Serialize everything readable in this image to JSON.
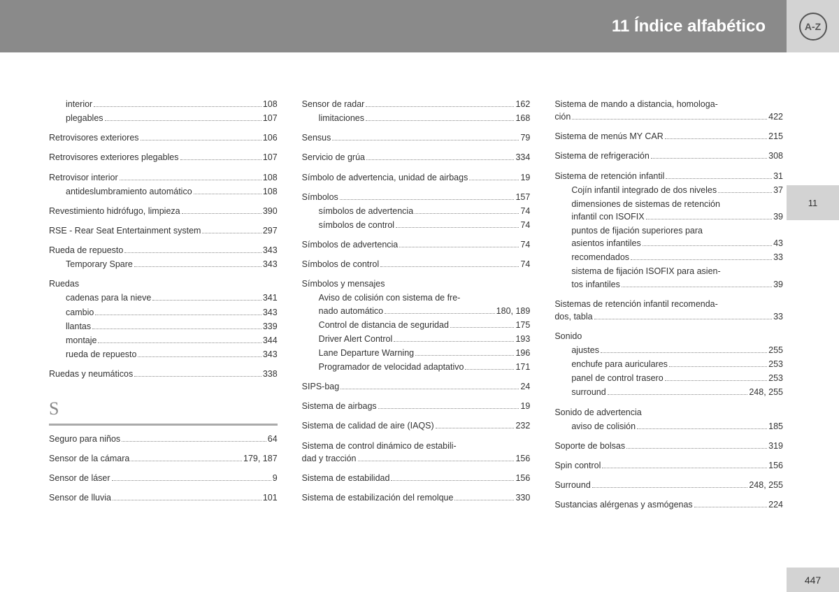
{
  "header": {
    "title": "11 Índice alfabético",
    "badge": "A-Z"
  },
  "sideTab": "11",
  "pageNumber": "447",
  "sectionLetter": "S",
  "col1a": [
    {
      "t": "interior",
      "p": "108",
      "sub": true
    },
    {
      "t": "plegables",
      "p": "107",
      "sub": true
    },
    {
      "sp": true
    },
    {
      "t": "Retrovisores exteriores",
      "p": "106"
    },
    {
      "sp": true
    },
    {
      "t": "Retrovisores exteriores plegables",
      "p": "107"
    },
    {
      "sp": true
    },
    {
      "t": "Retrovisor interior",
      "p": "108"
    },
    {
      "t": "antideslumbramiento automático",
      "p": "108",
      "sub": true
    },
    {
      "sp": true
    },
    {
      "t": "Revestimiento hidrófugo, limpieza",
      "p": "390"
    },
    {
      "sp": true
    },
    {
      "t": "RSE - Rear Seat Entertainment system",
      "p": "297"
    },
    {
      "sp": true
    },
    {
      "t": "Rueda de repuesto",
      "p": "343"
    },
    {
      "t": "Temporary Spare",
      "p": "343",
      "sub": true
    },
    {
      "sp": true
    },
    {
      "t": "Ruedas",
      "nopg": true
    },
    {
      "t": "cadenas para la nieve",
      "p": "341",
      "sub": true
    },
    {
      "t": "cambio",
      "p": "343",
      "sub": true
    },
    {
      "t": "llantas",
      "p": "339",
      "sub": true
    },
    {
      "t": "montaje",
      "p": "344",
      "sub": true
    },
    {
      "t": "rueda de repuesto",
      "p": "343",
      "sub": true
    },
    {
      "sp": true
    },
    {
      "t": "Ruedas y neumáticos",
      "p": "338"
    }
  ],
  "col1b": [
    {
      "t": "Seguro para niños",
      "p": "64"
    },
    {
      "sp": true
    },
    {
      "t": "Sensor de la cámara",
      "p": "179, 187"
    },
    {
      "sp": true
    },
    {
      "t": "Sensor de láser",
      "p": "9"
    },
    {
      "sp": true
    },
    {
      "t": "Sensor de lluvia",
      "p": "101"
    }
  ],
  "col2": [
    {
      "t": "Sensor de radar",
      "p": "162"
    },
    {
      "t": "limitaciones",
      "p": "168",
      "sub": true
    },
    {
      "sp": true
    },
    {
      "t": "Sensus",
      "p": "79"
    },
    {
      "sp": true
    },
    {
      "t": "Servicio de grúa",
      "p": "334"
    },
    {
      "sp": true
    },
    {
      "t": "Símbolo de advertencia, unidad de airbags",
      "p": "19"
    },
    {
      "sp": true
    },
    {
      "t": "Símbolos",
      "p": "157"
    },
    {
      "t": "símbolos de advertencia",
      "p": "74",
      "sub": true
    },
    {
      "t": "símbolos de control",
      "p": "74",
      "sub": true
    },
    {
      "sp": true
    },
    {
      "t": "Símbolos de advertencia",
      "p": "74"
    },
    {
      "sp": true
    },
    {
      "t": "Símbolos de control",
      "p": "74"
    },
    {
      "sp": true
    },
    {
      "t": "Símbolos y mensajes",
      "nopg": true
    },
    {
      "t": "Aviso de colisión con sistema de fre-",
      "sub": true,
      "wrap": true
    },
    {
      "t": "nado automático",
      "p": "180, 189",
      "sub": true
    },
    {
      "t": "Control de distancia de seguridad",
      "p": "175",
      "sub": true
    },
    {
      "t": "Driver Alert Control",
      "p": "193",
      "sub": true
    },
    {
      "t": "Lane Departure Warning",
      "p": "196",
      "sub": true
    },
    {
      "t": "Programador de velocidad adaptativo",
      "p": "171",
      "sub": true
    },
    {
      "sp": true
    },
    {
      "t": "SIPS-bag",
      "p": "24"
    },
    {
      "sp": true
    },
    {
      "t": "Sistema de airbags",
      "p": "19"
    },
    {
      "sp": true
    },
    {
      "t": "Sistema de calidad de aire (IAQS)",
      "p": "232"
    },
    {
      "sp": true
    },
    {
      "t": "Sistema de control dinámico de estabili-",
      "wrap": true
    },
    {
      "t": "dad y tracción",
      "p": "156"
    },
    {
      "sp": true
    },
    {
      "t": "Sistema de estabilidad",
      "p": "156"
    },
    {
      "sp": true
    },
    {
      "t": "Sistema de estabilización del remolque",
      "p": "330"
    }
  ],
  "col3": [
    {
      "t": "Sistema de mando a distancia, homologa-",
      "wrap": true
    },
    {
      "t": "ción",
      "p": "422"
    },
    {
      "sp": true
    },
    {
      "t": "Sistema de menús MY CAR",
      "p": "215"
    },
    {
      "sp": true
    },
    {
      "t": "Sistema de refrigeración",
      "p": "308"
    },
    {
      "sp": true
    },
    {
      "t": "Sistema de retención infantil",
      "p": "31"
    },
    {
      "t": "Cojín infantil integrado de dos niveles",
      "p": "37",
      "sub": true
    },
    {
      "t": "dimensiones de sistemas de retención",
      "sub": true,
      "wrap": true
    },
    {
      "t": "infantil con ISOFIX",
      "p": "39",
      "sub": true
    },
    {
      "t": "puntos de fijación superiores para",
      "sub": true,
      "wrap": true
    },
    {
      "t": "asientos infantiles",
      "p": "43",
      "sub": true
    },
    {
      "t": "recomendados",
      "p": "33",
      "sub": true
    },
    {
      "t": "sistema de fijación ISOFIX para asien-",
      "sub": true,
      "wrap": true
    },
    {
      "t": "tos infantiles",
      "p": "39",
      "sub": true
    },
    {
      "sp": true
    },
    {
      "t": "Sistemas de retención infantil recomenda-",
      "wrap": true
    },
    {
      "t": "dos, tabla",
      "p": "33"
    },
    {
      "sp": true
    },
    {
      "t": "Sonido",
      "nopg": true
    },
    {
      "t": "ajustes",
      "p": "255",
      "sub": true
    },
    {
      "t": "enchufe para auriculares",
      "p": "253",
      "sub": true
    },
    {
      "t": "panel de control trasero",
      "p": "253",
      "sub": true
    },
    {
      "t": "surround",
      "p": "248, 255",
      "sub": true
    },
    {
      "sp": true
    },
    {
      "t": "Sonido de advertencia",
      "nopg": true
    },
    {
      "t": "aviso de colisión",
      "p": "185",
      "sub": true
    },
    {
      "sp": true
    },
    {
      "t": "Soporte de bolsas",
      "p": "319"
    },
    {
      "sp": true
    },
    {
      "t": "Spin control",
      "p": "156"
    },
    {
      "sp": true
    },
    {
      "t": "Surround",
      "p": "248, 255"
    },
    {
      "sp": true
    },
    {
      "t": "Sustancias alérgenas y asmógenas",
      "p": "224"
    }
  ]
}
